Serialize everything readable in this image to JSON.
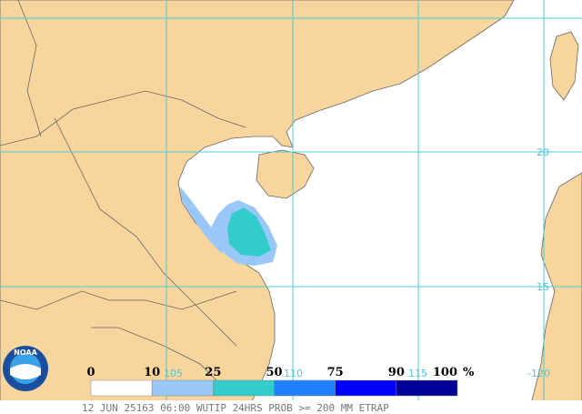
{
  "logo": {
    "text": "NOAA"
  },
  "grid": {
    "lon_labels": [
      "105",
      "110",
      "115",
      "-120"
    ],
    "lat_labels": [
      "20",
      "15"
    ]
  },
  "legend": {
    "labels": [
      "0",
      "10",
      "25",
      "50",
      "75",
      "90",
      "100"
    ],
    "unit": "%",
    "colors": [
      "#ffffff",
      "#99c8f8",
      "#33cccc",
      "#2080ff",
      "#0000ff",
      "#000099"
    ]
  },
  "caption": "12 JUN 25163 06:00 WUTIP 24HRS PROB >= 200 MM ETRAP"
}
